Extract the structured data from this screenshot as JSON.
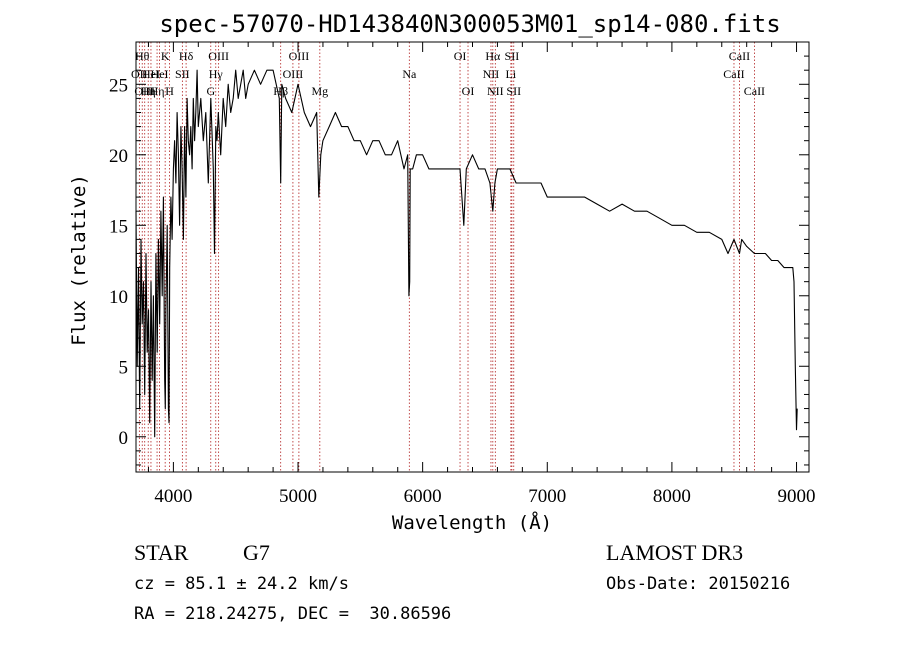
{
  "chart_data": {
    "type": "line",
    "title": "spec-57070-HD143840N300053M01_sp14-080.fits",
    "xlabel": "Wavelength (Å)",
    "ylabel": "Flux (relative)",
    "xlim": [
      3700,
      9100
    ],
    "ylim": [
      -2.5,
      28
    ],
    "x_ticks": [
      4000,
      5000,
      6000,
      7000,
      8000,
      9000
    ],
    "y_ticks": [
      0,
      5,
      10,
      15,
      20,
      25
    ],
    "grid": false,
    "series": [
      {
        "x": [
          3700,
          3710,
          3720,
          3730,
          3740,
          3750,
          3760,
          3770,
          3780,
          3790,
          3800,
          3810,
          3820,
          3830,
          3840,
          3850,
          3860,
          3870,
          3880,
          3890,
          3900,
          3910,
          3920,
          3930,
          3935,
          3940,
          3950,
          3960,
          3965,
          3970,
          3980,
          3990,
          4000,
          4010,
          4020,
          4030,
          4040,
          4050,
          4060,
          4070,
          4080,
          4090,
          4100,
          4110,
          4120,
          4130,
          4140,
          4150,
          4160,
          4170,
          4180,
          4190,
          4200,
          4220,
          4240,
          4260,
          4280,
          4300,
          4320,
          4330,
          4340,
          4350,
          4360,
          4380,
          4400,
          4420,
          4440,
          4460,
          4480,
          4500,
          4520,
          4540,
          4560,
          4580,
          4600,
          4650,
          4700,
          4750,
          4800,
          4850,
          4861,
          4870,
          4900,
          4950,
          5000,
          5050,
          5100,
          5150,
          5167,
          5172,
          5183,
          5200,
          5250,
          5300,
          5350,
          5400,
          5450,
          5500,
          5550,
          5600,
          5650,
          5700,
          5750,
          5800,
          5850,
          5880,
          5890,
          5896,
          5900,
          5920,
          5950,
          6000,
          6050,
          6100,
          6150,
          6200,
          6250,
          6300,
          6330,
          6350,
          6400,
          6450,
          6500,
          6540,
          6563,
          6580,
          6600,
          6650,
          6700,
          6750,
          6800,
          6850,
          6900,
          6950,
          7000,
          7100,
          7200,
          7300,
          7400,
          7500,
          7600,
          7700,
          7800,
          7900,
          8000,
          8100,
          8200,
          8300,
          8400,
          8450,
          8498,
          8520,
          8542,
          8560,
          8600,
          8662,
          8700,
          8750,
          8800,
          8850,
          8900,
          8950,
          8970,
          8980,
          8990,
          9000,
          9005
        ],
        "y": [
          16,
          5,
          12,
          2,
          14,
          8,
          11,
          3,
          13,
          6,
          9,
          1,
          11,
          4,
          10,
          0,
          13,
          6,
          14,
          8,
          16,
          10,
          17,
          4,
          2,
          9,
          15,
          2,
          1,
          12,
          17,
          14,
          19,
          21,
          18,
          23,
          20,
          15,
          22,
          19,
          14,
          22,
          17,
          24,
          21,
          20,
          22,
          19,
          24,
          21,
          23,
          26,
          22,
          24,
          21,
          23,
          18,
          24,
          19,
          13,
          22,
          21,
          23,
          20,
          24,
          22,
          25,
          23,
          24,
          26,
          24,
          25,
          26,
          24,
          25,
          26,
          25,
          26,
          26,
          24,
          18,
          25,
          24,
          23,
          25,
          23,
          22,
          23,
          17,
          18,
          20,
          21,
          22,
          23,
          22,
          22,
          21,
          21,
          20,
          21,
          21,
          20,
          20,
          21,
          19,
          20,
          10,
          11,
          19,
          19,
          20,
          20,
          19,
          19,
          19,
          19,
          19,
          19,
          15,
          19,
          20,
          19,
          19,
          18,
          16,
          18,
          19,
          19,
          19,
          18,
          18,
          18,
          18,
          18,
          17,
          17,
          17,
          17,
          16.5,
          16,
          16.5,
          16,
          16,
          15.5,
          15,
          15,
          14.5,
          14.5,
          14,
          13,
          14,
          13.5,
          13,
          14,
          13.5,
          13,
          13,
          13,
          12.5,
          12.5,
          12,
          12,
          12,
          11,
          5,
          0.5,
          2
        ]
      }
    ],
    "line_markers": [
      {
        "wl": 3727,
        "row": 1,
        "label": "OII"
      },
      {
        "wl": 3750,
        "row": 0,
        "label": "Hθ"
      },
      {
        "wl": 3770,
        "row": 2,
        "label": "OIII"
      },
      {
        "wl": 3798,
        "row": 2,
        "label": "Hη"
      },
      {
        "wl": 3820,
        "row": 1,
        "label": "HeI"
      },
      {
        "wl": 3869,
        "row": 2,
        "label": "Hη"
      },
      {
        "wl": 3889,
        "row": 1,
        "label": "HeI"
      },
      {
        "wl": 3934,
        "row": 0,
        "label": "K"
      },
      {
        "wl": 3969,
        "row": 2,
        "label": "H"
      },
      {
        "wl": 4072,
        "row": 1,
        "label": "SII"
      },
      {
        "wl": 4102,
        "row": 0,
        "label": "Hδ"
      },
      {
        "wl": 4300,
        "row": 2,
        "label": "G"
      },
      {
        "wl": 4340,
        "row": 1,
        "label": "Hγ"
      },
      {
        "wl": 4363,
        "row": 0,
        "label": "OIII"
      },
      {
        "wl": 4861,
        "row": 2,
        "label": "Hβ"
      },
      {
        "wl": 4959,
        "row": 1,
        "label": "OIII"
      },
      {
        "wl": 5007,
        "row": 0,
        "label": "OIII"
      },
      {
        "wl": 5175,
        "row": 2,
        "label": "Mg"
      },
      {
        "wl": 5893,
        "row": 1,
        "label": "Na"
      },
      {
        "wl": 6300,
        "row": 0,
        "label": "OI"
      },
      {
        "wl": 6364,
        "row": 2,
        "label": "OI"
      },
      {
        "wl": 6548,
        "row": 1,
        "label": "NII"
      },
      {
        "wl": 6563,
        "row": 0,
        "label": "Hα"
      },
      {
        "wl": 6583,
        "row": 2,
        "label": "NII"
      },
      {
        "wl": 6708,
        "row": 1,
        "label": "Li"
      },
      {
        "wl": 6716,
        "row": 0,
        "label": "SII"
      },
      {
        "wl": 6731,
        "row": 2,
        "label": "SII"
      },
      {
        "wl": 8498,
        "row": 1,
        "label": "CaII"
      },
      {
        "wl": 8542,
        "row": 0,
        "label": "CaII"
      },
      {
        "wl": 8662,
        "row": 2,
        "label": "CaII"
      }
    ],
    "colors": {
      "spectrum": "#000000",
      "marker": "#b22222",
      "axes": "#000000"
    }
  },
  "footer": {
    "object_class": "STAR",
    "subclass": "G7",
    "survey": "LAMOST DR3",
    "cz": "cz = 85.1 ± 24.2 km/s",
    "obs_date": "Obs-Date: 20150216",
    "coords": "RA = 218.24275, DEC =  30.86596"
  }
}
